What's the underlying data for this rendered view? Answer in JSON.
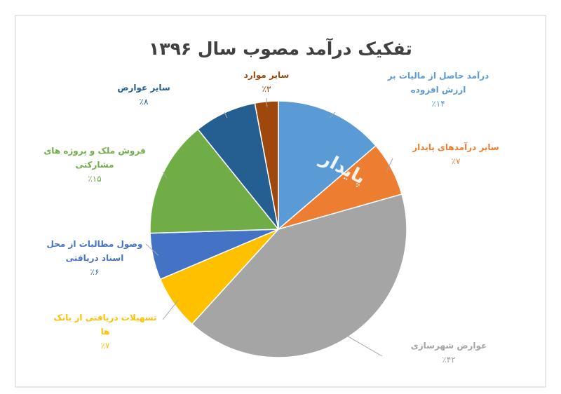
{
  "chart_data": {
    "type": "pie",
    "title": "تفکیک درآمد مصوب سال ۱۳۹۶",
    "watermark": "پایدار",
    "categories": [
      "درآمد حاصل از مالیات بر ارزش افزوده",
      "سایر درآمدهای پایدار",
      "عوارض شهرسازی",
      "تسهیلات دریافتی از بانک ها",
      "وصول مطالبات از محل اسناد دریافتی",
      "فروش ملک و پروژه های مشارکتی",
      "سایر عوارض",
      "سایر موارد"
    ],
    "values": [
      14,
      7,
      42,
      7,
      6,
      15,
      8,
      3
    ],
    "value_labels": [
      "٪۱۴",
      "٪۷",
      "٪۴۲",
      "٪۷",
      "٪۶",
      "٪۱۵",
      "٪۸",
      "٪۳"
    ],
    "colors": [
      "#5b9bd5",
      "#ed7d31",
      "#a5a5a5",
      "#ffc000",
      "#4472c4",
      "#70ad47",
      "#255e91",
      "#9e480e"
    ]
  }
}
